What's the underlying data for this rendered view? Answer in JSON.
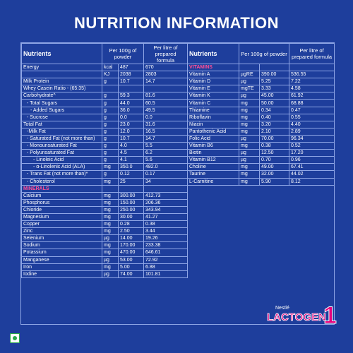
{
  "title": "NUTRITION INFORMATION",
  "headers": {
    "nutrients": "Nutrients",
    "per100": "Per 100g of powder",
    "perlitre": "Per litre of prepared formula"
  },
  "left_rows": [
    {
      "n": "Energy",
      "u": "kcal",
      "a": "487",
      "b": "670",
      "ind": 0
    },
    {
      "n": "",
      "u": "KJ",
      "a": "2038",
      "b": "2803",
      "ind": 0
    },
    {
      "n": "Milk Protein",
      "u": "g",
      "a": "10.7",
      "b": "14.7",
      "ind": 0
    },
    {
      "n": "Whey Casein Ratio - (65:35)",
      "u": "",
      "a": "",
      "b": "",
      "ind": 0
    },
    {
      "n": "Carbohydrate^",
      "u": "g",
      "a": "59.3",
      "b": "81.6",
      "ind": 0
    },
    {
      "n": "- Total Sugars",
      "u": "g",
      "a": "44.0",
      "b": "60.5",
      "ind": 1
    },
    {
      "n": "- Added Sugars",
      "u": "g",
      "a": "36.0",
      "b": "49.5",
      "ind": 2
    },
    {
      "n": "- Sucrose",
      "u": "g",
      "a": "0.0",
      "b": "0.0",
      "ind": 1
    },
    {
      "n": "Total Fat",
      "u": "g",
      "a": "23.0",
      "b": "31.6",
      "ind": 0
    },
    {
      "n": "-Milk Fat",
      "u": "g",
      "a": "12.0",
      "b": "16.5",
      "ind": 1
    },
    {
      "n": "- Saturated Fat (not more than)",
      "u": "g",
      "a": "10.7",
      "b": "14.7",
      "ind": 1
    },
    {
      "n": "- Monounsaturated Fat",
      "u": "g",
      "a": "4.0",
      "b": "5.5",
      "ind": 1
    },
    {
      "n": "- Polyunsaturated Fat",
      "u": "g",
      "a": "4.5",
      "b": "6.2",
      "ind": 1
    },
    {
      "n": "- Linoleic Acid",
      "u": "g",
      "a": "4.1",
      "b": "5.6",
      "ind": 3
    },
    {
      "n": "- α-Linolenic Acid (ALA)",
      "u": "mg",
      "a": "350.0",
      "b": "482.0",
      "ind": 3
    },
    {
      "n": "- Trans Fat (not more than)*",
      "u": "g",
      "a": "0.12",
      "b": "0.17",
      "ind": 1
    },
    {
      "n": "- Cholesterol",
      "u": "mg",
      "a": "25",
      "b": "34",
      "ind": 1
    },
    {
      "sec": "MINERALS"
    },
    {
      "n": "Calcium",
      "u": "mg",
      "a": "300.00",
      "b": "412.73",
      "ind": 0
    },
    {
      "n": "Phosphorus",
      "u": "mg",
      "a": "150.00",
      "b": "206.36",
      "ind": 0
    },
    {
      "n": "Chloride",
      "u": "mg",
      "a": "250.00",
      "b": "343.94",
      "ind": 0
    },
    {
      "n": "Magnesium",
      "u": "mg",
      "a": "30.00",
      "b": "41.27",
      "ind": 0
    },
    {
      "n": "Copper",
      "u": "mg",
      "a": "0.28",
      "b": "0.38",
      "ind": 0
    },
    {
      "n": "Zinc",
      "u": "mg",
      "a": "2.50",
      "b": "3.44",
      "ind": 0
    },
    {
      "n": "Selenium",
      "u": "µg",
      "a": "14.00",
      "b": "19.26",
      "ind": 0
    },
    {
      "n": "Sodium",
      "u": "mg",
      "a": "170.00",
      "b": "233.38",
      "ind": 0
    },
    {
      "n": "Potassium",
      "u": "mg",
      "a": "470.00",
      "b": "646.61",
      "ind": 0
    },
    {
      "n": "Manganese",
      "u": "µg",
      "a": "53.00",
      "b": "72.92",
      "ind": 0
    },
    {
      "n": "Iron",
      "u": "mg",
      "a": "5.00",
      "b": "6.88",
      "ind": 0
    },
    {
      "n": "Iodine",
      "u": "µg",
      "a": "74.00",
      "b": "101.81",
      "ind": 0
    }
  ],
  "right_rows": [
    {
      "sec": "VITAMINS"
    },
    {
      "n": "Vitamin A",
      "u": "µgRE",
      "a": "390.00",
      "b": "536.55"
    },
    {
      "n": "Vitamin D",
      "u": "µg",
      "a": "5.25",
      "b": "7.22"
    },
    {
      "n": "Vitamin E",
      "u": "mgTE",
      "a": "3.33",
      "b": "4.58"
    },
    {
      "n": "Vitamin K",
      "u": "µg",
      "a": "45.00",
      "b": "61.92"
    },
    {
      "n": "Vitamin C",
      "u": "mg",
      "a": "50.00",
      "b": "68.88"
    },
    {
      "n": "Thiamine",
      "u": "mg",
      "a": "0.34",
      "b": "0.47"
    },
    {
      "n": "Riboflavin",
      "u": "mg",
      "a": "0.40",
      "b": "0.55"
    },
    {
      "n": "Niacin",
      "u": "mg",
      "a": "3.20",
      "b": "4.40"
    },
    {
      "n": "Pantothenic Acid",
      "u": "mg",
      "a": "2.10",
      "b": "2.89"
    },
    {
      "n": "Folic Acid",
      "u": "µg",
      "a": "70.00",
      "b": "96.34"
    },
    {
      "n": "Vitamin B6",
      "u": "mg",
      "a": "0.38",
      "b": "0.52"
    },
    {
      "n": "Biotin",
      "u": "µg",
      "a": "12.50",
      "b": "17.20"
    },
    {
      "n": "Vitamin B12",
      "u": "µg",
      "a": "0.70",
      "b": "0.96"
    },
    {
      "n": "Choline",
      "u": "mg",
      "a": "49.00",
      "b": "67.41"
    },
    {
      "n": "Taurine",
      "u": "mg",
      "a": "32.00",
      "b": "44.02"
    },
    {
      "n": "L-Carnitine",
      "u": "mg",
      "a": "5.90",
      "b": "8.12"
    }
  ],
  "logo": {
    "brand": "Nestlé",
    "product": "LACTOGEN",
    "stage": "1"
  },
  "colors": {
    "background": "#1e3e9c",
    "section": "#ff4f96",
    "logo_pink": "#e6007e"
  }
}
